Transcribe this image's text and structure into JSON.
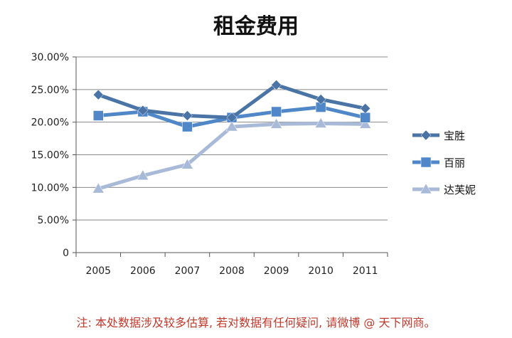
{
  "chart_data": {
    "type": "line",
    "title": "租金费用",
    "categories": [
      "2005",
      "2006",
      "2007",
      "2008",
      "2009",
      "2010",
      "2011"
    ],
    "y_ticks": [
      "0",
      "5.00%",
      "10.00%",
      "15.00%",
      "20.00%",
      "25.00%",
      "30.00%"
    ],
    "ylim": [
      0,
      30
    ],
    "series": [
      {
        "name": "宝胜",
        "marker": "diamond",
        "color": "#4a74a6",
        "values": [
          24.2,
          21.8,
          21.0,
          20.7,
          25.7,
          23.5,
          22.1
        ]
      },
      {
        "name": "百丽",
        "marker": "square",
        "color": "#4f87c8",
        "values": [
          21.0,
          21.6,
          19.3,
          20.7,
          21.6,
          22.3,
          20.7
        ]
      },
      {
        "name": "达芙妮",
        "marker": "triangle",
        "color": "#a9bad8",
        "values": [
          9.8,
          11.8,
          13.5,
          19.3,
          19.7,
          19.8,
          19.7
        ]
      }
    ],
    "legend_position": "right",
    "grid": true
  },
  "footnote": "注: 本处数据涉及较多估算, 若对数据有任何疑问, 请微博 @ 天下网商。"
}
